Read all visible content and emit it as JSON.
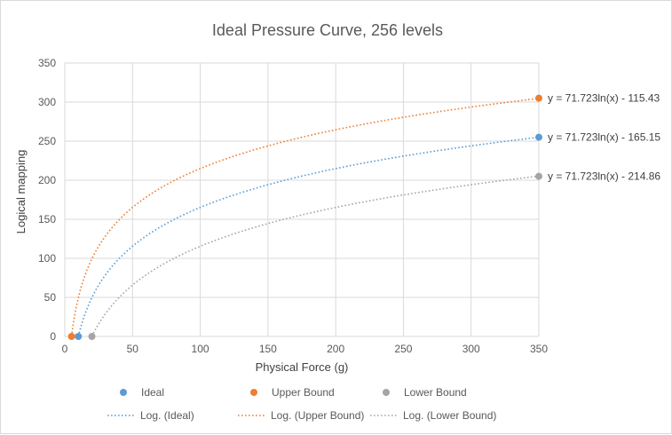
{
  "chart_data": {
    "type": "scatter",
    "title": "Ideal Pressure Curve, 256 levels",
    "xlabel": "Physical Force (g)",
    "ylabel": "Logical mapping",
    "xlim": [
      0,
      350
    ],
    "ylim": [
      0,
      350
    ],
    "xticks": [
      "0",
      "50",
      "100",
      "150",
      "200",
      "250",
      "300",
      "350"
    ],
    "yticks": [
      "0",
      "50",
      "100",
      "150",
      "200",
      "250",
      "300",
      "350"
    ],
    "grid": true,
    "legend_position": "bottom",
    "series": [
      {
        "name": "Ideal",
        "color": "#5b9bd5",
        "points": [
          [
            10,
            0
          ],
          [
            350,
            255
          ]
        ],
        "trendline": {
          "name": "Log. (Ideal)",
          "a": 71.723,
          "b": -165.15,
          "equation": "y = 71.723ln(x) - 165.15"
        }
      },
      {
        "name": "Upper Bound",
        "color": "#ed7d31",
        "points": [
          [
            5,
            0
          ],
          [
            350,
            305
          ]
        ],
        "trendline": {
          "name": "Log. (Upper Bound)",
          "a": 71.723,
          "b": -115.43,
          "equation": "y = 71.723ln(x) - 115.43"
        }
      },
      {
        "name": "Lower Bound",
        "color": "#a5a5a5",
        "points": [
          [
            20,
            0
          ],
          [
            350,
            205
          ]
        ],
        "trendline": {
          "name": "Log. (Lower Bound)",
          "a": 71.723,
          "b": -214.86,
          "equation": "y = 71.723ln(x) - 214.86"
        }
      }
    ]
  }
}
